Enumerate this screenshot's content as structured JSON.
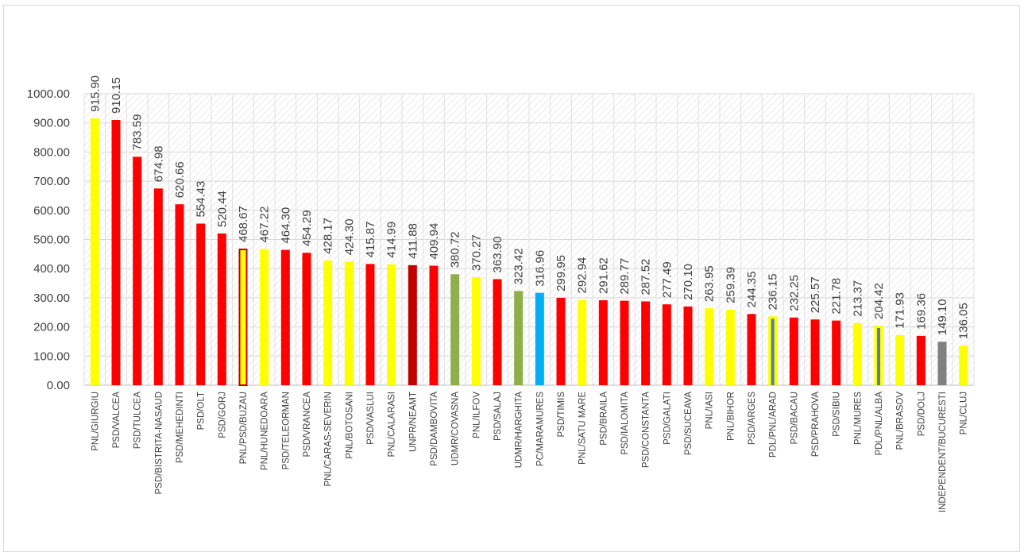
{
  "chart_data": {
    "type": "bar",
    "title": "",
    "xlabel": "",
    "ylabel": "",
    "ylim": [
      0,
      1000
    ],
    "yticks": [
      "0.00",
      "100.00",
      "200.00",
      "300.00",
      "400.00",
      "500.00",
      "600.00",
      "700.00",
      "800.00",
      "900.00",
      "1000.00"
    ],
    "grid": true,
    "categories": [
      "PNL/GIURGIU",
      "PSD/VALCEA",
      "PSD/TULCEA",
      "PSD/BISTRITA-NASAUD",
      "PSD/MEHEDINTI",
      "PSD/OLT",
      "PSD/GORJ",
      "PNL/PSD/BUZAU",
      "PNL/HUNEDOARA",
      "PSD/TELEORMAN",
      "PSD/VRANCEA",
      "PNL/CARAS-SEVERIN",
      "PNL/BOTOSANI",
      "PSD/VASLUI",
      "PNL/CALARASI",
      "UNPR/NEAMT",
      "PSD/DAMBOVITA",
      "UDMR/COVASNA",
      "PNL/ILFOV",
      "PSD/SALAJ",
      "UDMR/HARGHITA",
      "PC/MARAMURES",
      "PSD/TIMIS",
      "PNL/SATU MARE",
      "PSD/BRAILA",
      "PSD/IALOMITA",
      "PSD/CONSTANTA",
      "PSD/GALATI",
      "PSD/SUCEAVA",
      "PNL/IASI",
      "PNL/BIHOR",
      "PSD/ARGES",
      "PDL/PNL/ARAD",
      "PSD/BACAU",
      "PSD/PRAHOVA",
      "PSD/SIBIU",
      "PNL/MURES",
      "PDL/PNL/ALBA",
      "PNL/BRASOV",
      "PSD/DOLJ",
      "INDEPENDENT/BUCURESTI",
      "PNL/CLUJ"
    ],
    "values": [
      915.9,
      910.15,
      783.59,
      674.98,
      620.66,
      554.43,
      520.44,
      468.67,
      467.22,
      464.3,
      454.29,
      428.17,
      424.3,
      415.87,
      414.99,
      411.88,
      409.94,
      380.72,
      370.27,
      363.9,
      323.42,
      316.96,
      299.95,
      292.94,
      291.62,
      289.77,
      287.52,
      277.49,
      270.1,
      263.95,
      259.39,
      244.35,
      236.15,
      232.25,
      225.57,
      221.78,
      213.37,
      204.42,
      171.93,
      169.36,
      149.1,
      136.05
    ],
    "data_labels": [
      "915.90",
      "910.15",
      "783.59",
      "674.98",
      "620.66",
      "554.43",
      "520.44",
      "468.67",
      "467.22",
      "464.30",
      "454.29",
      "428.17",
      "424.30",
      "415.87",
      "414.99",
      "411.88",
      "409.94",
      "380.72",
      "370.27",
      "363.90",
      "323.42",
      "316.96",
      "299.95",
      "292.94",
      "291.62",
      "289.77",
      "287.52",
      "277.49",
      "270.10",
      "263.95",
      "259.39",
      "244.35",
      "236.15",
      "232.25",
      "225.57",
      "221.78",
      "213.37",
      "204.42",
      "171.93",
      "169.36",
      "149.10",
      "136.05"
    ],
    "colors": [
      "#ffff00",
      "#ff0000",
      "#ff0000",
      "#ff0000",
      "#ff0000",
      "#ff0000",
      "#ff0000",
      "#ffff00",
      "#ffff00",
      "#ff0000",
      "#ff0000",
      "#ffff00",
      "#ffff00",
      "#ff0000",
      "#ffff00",
      "#c00000",
      "#ff0000",
      "#8db04a",
      "#ffff00",
      "#ff0000",
      "#8db04a",
      "#00b0f0",
      "#ff0000",
      "#ffff00",
      "#ff0000",
      "#ff0000",
      "#ff0000",
      "#ff0000",
      "#ff0000",
      "#ffff00",
      "#ffff00",
      "#ff0000",
      "#ffff00",
      "#ff0000",
      "#ff0000",
      "#ff0000",
      "#ffff00",
      "#ffff00",
      "#ffff00",
      "#ff0000",
      "#808080",
      "#ffff00"
    ],
    "outline": [
      "",
      "",
      "",
      "",
      "",
      "",
      "",
      "#c00000",
      "",
      "",
      "",
      "",
      "",
      "",
      "",
      "",
      "",
      "",
      "",
      "",
      "",
      "",
      "",
      "",
      "",
      "",
      "",
      "",
      "",
      "",
      "",
      "",
      "#4f7fb0",
      "",
      "",
      "",
      "",
      "#4f7fb0",
      "",
      "",
      "",
      ""
    ]
  }
}
